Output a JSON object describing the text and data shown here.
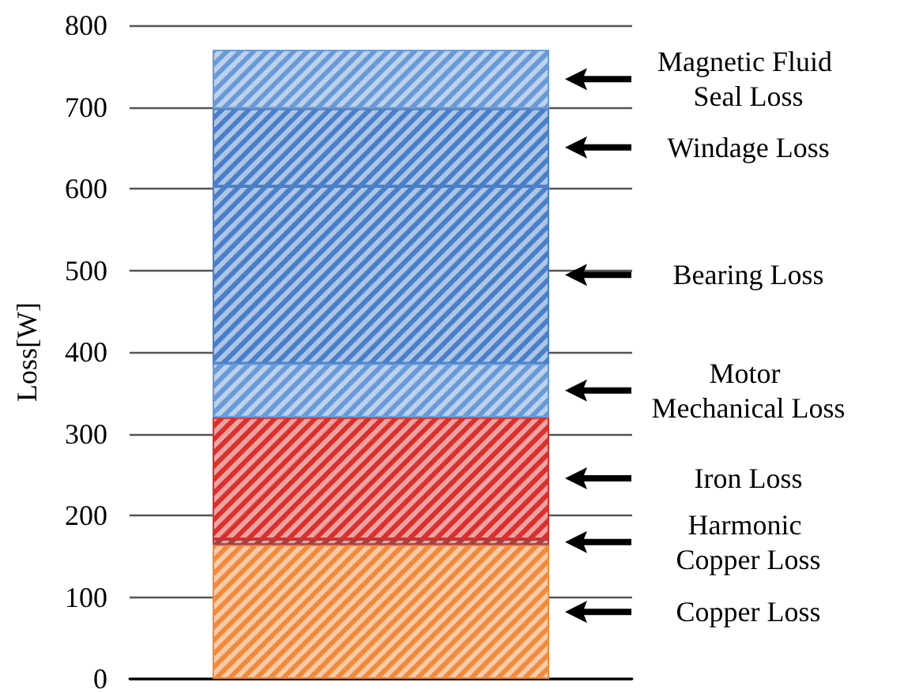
{
  "chart_data": {
    "type": "bar",
    "stacked": true,
    "ylabel": "Loss[W]",
    "categories": [
      null
    ],
    "series": [
      {
        "name": "Copper Loss",
        "color": "#f08a3c",
        "values": [
          164
        ]
      },
      {
        "name": "Harmonic Copper Loss",
        "color": "#a84040",
        "values": [
          7
        ]
      },
      {
        "name": "Iron Loss",
        "color": "#d9302e",
        "values": [
          149
        ]
      },
      {
        "name": "Motor Mechanical Loss",
        "color": "#6a9ad6",
        "values": [
          66
        ]
      },
      {
        "name": "Bearing Loss",
        "color": "#4a7fc8",
        "values": [
          217
        ]
      },
      {
        "name": "Windage Loss",
        "color": "#4a7fc8",
        "values": [
          95
        ]
      },
      {
        "name": "Magnetic Fluid Seal Loss",
        "color": "#6a9ad6",
        "values": [
          72
        ]
      }
    ],
    "ylim": [
      0,
      800
    ],
    "yticks": [
      0,
      100,
      200,
      300,
      400,
      500,
      600,
      700,
      800
    ],
    "grid": "y",
    "legend": false
  }
}
